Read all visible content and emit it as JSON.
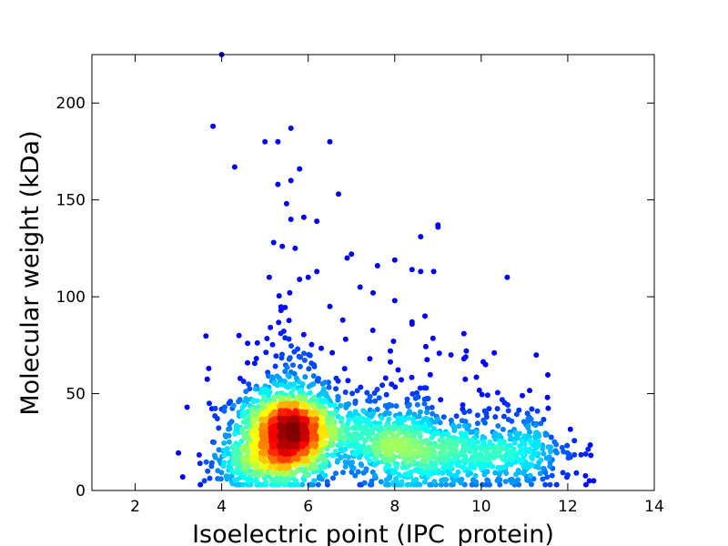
{
  "chart_data": {
    "type": "scatter",
    "title": "",
    "xlabel": "Isoelectric point (IPC_protein)",
    "ylabel": "Molecular weight (kDa)",
    "xlim": [
      1,
      14
    ],
    "ylim": [
      0,
      225
    ],
    "x_ticks": [
      "2",
      "4",
      "6",
      "8",
      "10",
      "12",
      "14"
    ],
    "y_ticks": [
      "0",
      "50",
      "100",
      "150",
      "200"
    ],
    "grid": false,
    "legend": "none",
    "colormap": "jet (point density)",
    "density_clusters": [
      {
        "center_x": 5.5,
        "center_y": 28,
        "sd_x": 0.55,
        "sd_y": 12,
        "share": 0.52
      },
      {
        "center_x": 8.8,
        "center_y": 18,
        "sd_x": 0.9,
        "sd_y": 9,
        "share": 0.18
      },
      {
        "center_x": 7.5,
        "center_y": 28,
        "sd_x": 0.8,
        "sd_y": 10,
        "share": 0.14
      },
      {
        "center_x": 10.8,
        "center_y": 18,
        "sd_x": 0.7,
        "sd_y": 9,
        "share": 0.1
      },
      {
        "center_x": 4.6,
        "center_y": 14,
        "sd_x": 0.5,
        "sd_y": 7,
        "share": 0.06
      }
    ],
    "outliers": [
      [
        4.0,
        225
      ],
      [
        3.8,
        188
      ],
      [
        5.6,
        187
      ],
      [
        4.3,
        167
      ],
      [
        5.0,
        180
      ],
      [
        5.3,
        180
      ],
      [
        6.5,
        180
      ],
      [
        5.8,
        166
      ],
      [
        5.6,
        160
      ],
      [
        5.3,
        158
      ],
      [
        6.7,
        153
      ],
      [
        5.5,
        148
      ],
      [
        5.6,
        140
      ],
      [
        5.9,
        141
      ],
      [
        6.2,
        139
      ],
      [
        9.0,
        137
      ],
      [
        9.0,
        136
      ],
      [
        8.6,
        131
      ],
      [
        5.2,
        128
      ],
      [
        5.4,
        126
      ],
      [
        5.7,
        125
      ],
      [
        7.0,
        122
      ],
      [
        6.9,
        120
      ],
      [
        8.0,
        119
      ],
      [
        7.6,
        116
      ],
      [
        8.4,
        114
      ],
      [
        8.9,
        113
      ],
      [
        8.6,
        113
      ],
      [
        10.6,
        110
      ],
      [
        6.0,
        110
      ],
      [
        5.8,
        109
      ],
      [
        6.2,
        113
      ],
      [
        5.1,
        110
      ],
      [
        7.2,
        105
      ],
      [
        7.5,
        102
      ],
      [
        8.0,
        98
      ],
      [
        8.7,
        90
      ],
      [
        8.4,
        87
      ],
      [
        9.6,
        81
      ],
      [
        10.3,
        71
      ],
      [
        10.1,
        65
      ],
      [
        3.2,
        43
      ],
      [
        3.7,
        63
      ],
      [
        4.4,
        80
      ],
      [
        4.6,
        76
      ],
      [
        12.5,
        5
      ],
      [
        12.6,
        5
      ],
      [
        12.2,
        9
      ],
      [
        3.1,
        7
      ],
      [
        3.6,
        5
      ],
      [
        3.5,
        14
      ],
      [
        3.8,
        25
      ],
      [
        4.0,
        42
      ],
      [
        4.2,
        46
      ],
      [
        11.3,
        41
      ],
      [
        11.6,
        20
      ],
      [
        11.9,
        20
      ],
      [
        12.0,
        8
      ],
      [
        6.5,
        95
      ],
      [
        6.8,
        88
      ],
      [
        7.9,
        72
      ],
      [
        9.3,
        70
      ],
      [
        9.6,
        68
      ]
    ]
  }
}
